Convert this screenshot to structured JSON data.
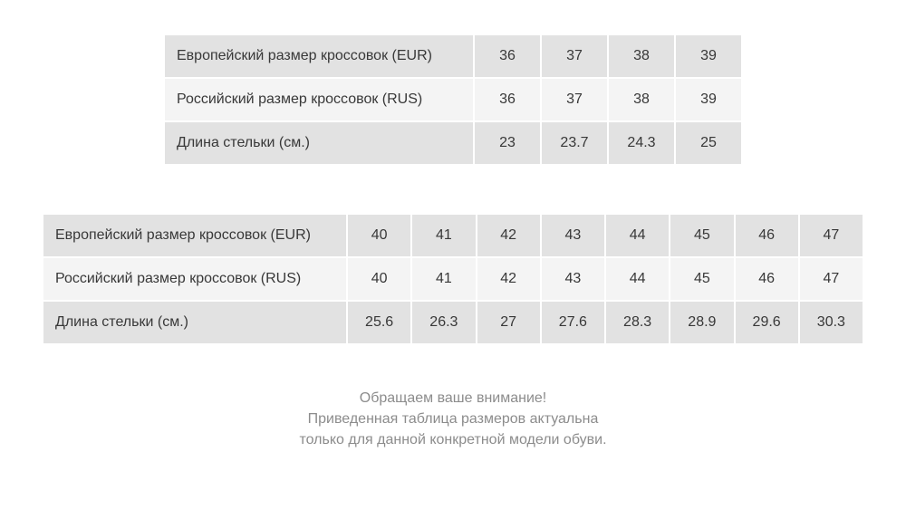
{
  "chart_data": [
    {
      "type": "table",
      "rows": [
        {
          "label": "Европейский размер кроссовок (EUR)",
          "values": [
            "36",
            "37",
            "38",
            "39"
          ]
        },
        {
          "label": "Российский размер кроссовок (RUS)",
          "values": [
            "36",
            "37",
            "38",
            "39"
          ]
        },
        {
          "label": "Длина стельки (см.)",
          "values": [
            "23",
            "23.7",
            "24.3",
            "25"
          ]
        }
      ]
    },
    {
      "type": "table",
      "rows": [
        {
          "label": "Европейский размер кроссовок (EUR)",
          "values": [
            "40",
            "41",
            "42",
            "43",
            "44",
            "45",
            "46",
            "47"
          ]
        },
        {
          "label": "Российский размер кроссовок (RUS)",
          "values": [
            "40",
            "41",
            "42",
            "43",
            "44",
            "45",
            "46",
            "47"
          ]
        },
        {
          "label": "Длина стельки (см.)",
          "values": [
            "25.6",
            "26.3",
            "27",
            "27.6",
            "28.3",
            "28.9",
            "29.6",
            "30.3"
          ]
        }
      ]
    }
  ],
  "note": {
    "lines": [
      "Обращаем ваше внимание!",
      "Приведенная таблица размеров актуальна",
      "только для данной конкретной модели обуви."
    ]
  },
  "colors": {
    "row_shaded": "#e2e2e2",
    "row_light": "#f4f4f4",
    "table_text": "#383838",
    "note_text": "#8c8c8c"
  }
}
